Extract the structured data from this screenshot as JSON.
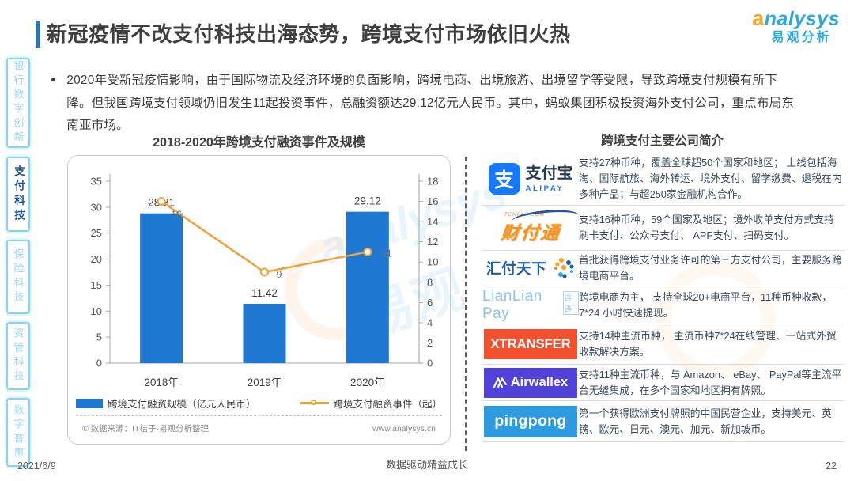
{
  "header": {
    "title": "新冠疫情不改支付科技出海态势，跨境支付市场依旧火热",
    "logo": {
      "en_first": "a",
      "en_rest": "nalysys",
      "cn": "易观分析"
    }
  },
  "sidebar": {
    "items": [
      {
        "label": "银行数字创新",
        "active": false
      },
      {
        "label": "支付科技",
        "active": true
      },
      {
        "label": "保险科技",
        "active": false
      },
      {
        "label": "资管科技",
        "active": false
      },
      {
        "label": "数字普惠",
        "active": false
      }
    ]
  },
  "summary": {
    "bullet": "●",
    "text": "2020年受新冠疫情影响，由于国际物流及经济环境的负面影响，跨境电商、出境旅游、出境留学等受限，导致跨境支付规模有所下降。但我国跨境支付领域仍旧发生11起投资事件，总融资额达29.12亿元人民币。其中，蚂蚁集团积极投资海外支付公司，重点布局东南亚市场。"
  },
  "chart_data": {
    "type": "bar",
    "title": "2018-2020年跨境支付融资事件及规模",
    "categories": [
      "2018年",
      "2019年",
      "2020年"
    ],
    "series": [
      {
        "name": "跨境支付融资规模（亿元人民币）",
        "kind": "bar",
        "axis": "left",
        "values": [
          28.81,
          11.42,
          29.12
        ],
        "color": "#1e78d2"
      },
      {
        "name": "跨境支付融资事件（起）",
        "kind": "line",
        "axis": "right",
        "values": [
          16,
          9,
          11
        ],
        "color": "#f0a13a"
      }
    ],
    "axes": {
      "left": {
        "min": 0,
        "max": 35,
        "step": 5
      },
      "right": {
        "min": 0,
        "max": 18,
        "step": 2
      }
    },
    "grid": false,
    "legend_position": "bottom",
    "source": "© 数据来源：IT桔子·易观分析整理",
    "site": "www.analysys.cn"
  },
  "companies": {
    "title": "跨境支付主要公司简介",
    "rows": [
      {
        "name": "支付宝",
        "logo": {
          "icon_char": "支",
          "cn": "支付宝",
          "en": "ALIPAY",
          "color": "#1677FF"
        },
        "desc": "支持27种币种，覆盖全球超50个国家和地区； 上线包括海淘、国际航旅、海外转运、境外支付、留学缴费、退税在内多种产品；与超250家金融机构合作。"
      },
      {
        "name": "财付通",
        "logo": {
          "caption": "TENPAY.COM",
          "cn": "财付通",
          "color": "#F7941D"
        },
        "desc": "支持16种币种，59个国家及地区；境外收单支付方式支持刷卡支付、公众号支付、 APP支付、扫码支付。"
      },
      {
        "name": "汇付天下",
        "logo": {
          "cn": "汇付天下",
          "color": "#1c5ca8"
        },
        "desc": "首批获得跨境支付业务许可的第三方支付公司，主要服务跨境电商平台。"
      },
      {
        "name": "连连支付",
        "logo": {
          "en": "LianLian Pay",
          "cn": "连连",
          "color": "#85c6ec"
        },
        "desc": "跨境电商为主， 支持全球20+电商平台，11种币种收款，7*24 小时快速提现。"
      },
      {
        "name": "XTransfer",
        "logo": {
          "en": "XTRANSFER",
          "color": "#F1512E"
        },
        "desc": "支持14种主流币种， 主流币种7*24在线管理、一站式外贸收款解决方案。"
      },
      {
        "name": "Airwallex",
        "logo": {
          "en": "Airwallex",
          "color": "#5143D9"
        },
        "desc": "支持11种主流币种，与 Amazon、 eBay、 PayPal等主流平台无缝集成，在多个国家和地区拥有牌照。"
      },
      {
        "name": "PingPong",
        "logo": {
          "en": "pingpong",
          "color": "#2E9BE0"
        },
        "desc": "第一个获得欧洲支付牌照的中国民营企业，支持美元、英镑、欧元、日元、澳元、加元、新加坡币。"
      }
    ]
  },
  "footer": {
    "date": "2021/6/9",
    "slogan": "数据驱动精益成长",
    "page": "22"
  }
}
